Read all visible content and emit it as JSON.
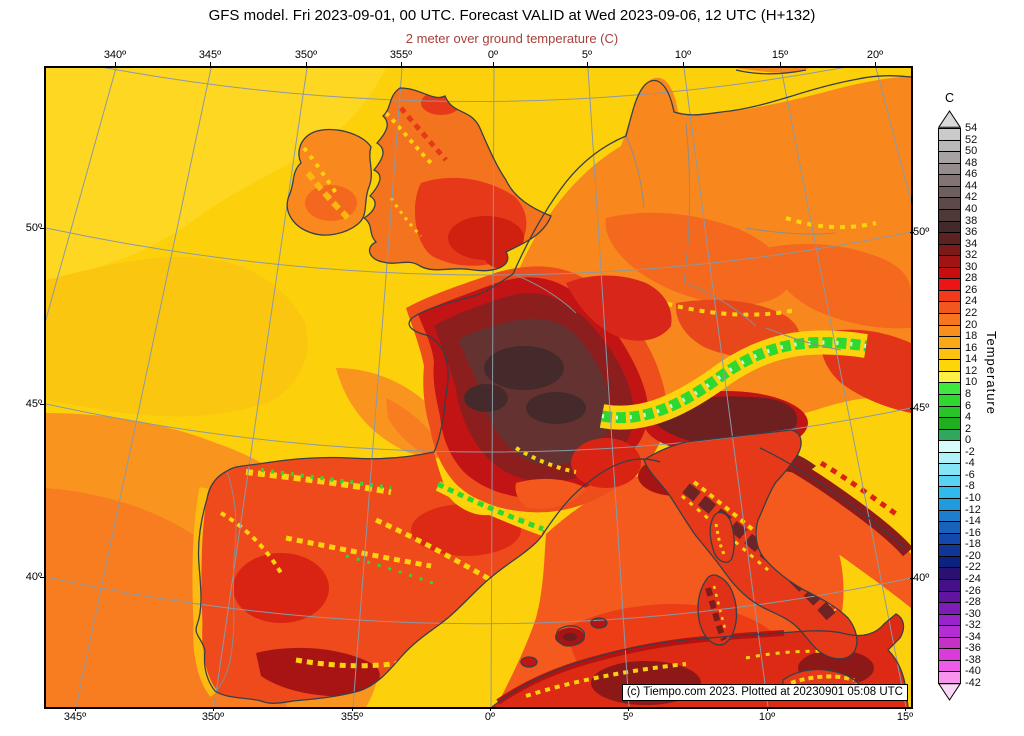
{
  "header": {
    "title": "GFS model. Fri 2023-09-01, 00 UTC. Forecast VALID at Wed 2023-09-06, 12 UTC (H+132)",
    "subtitle": "2 meter over ground temperature (C)",
    "subtitle_color": "#A6403A"
  },
  "map": {
    "axis_labels": {
      "top": [
        "340º",
        "345º",
        "350º",
        "355º",
        "0º",
        "5º",
        "10º",
        "15º",
        "20º"
      ],
      "bottom": [
        "345º",
        "350º",
        "355º",
        "0º",
        "5º",
        "10º",
        "15º"
      ],
      "left": [
        "50º",
        "45º",
        "40º"
      ],
      "right": [
        "50º",
        "45º",
        "40º"
      ]
    },
    "copyright": "(c) Tiempo.com 2023. Plotted at 20230901 05:08 UTC"
  },
  "colorbar": {
    "unit_label": "C",
    "axis_title": "Temperature",
    "max": 54,
    "min": -42,
    "step": 2,
    "ticks": [
      54,
      52,
      50,
      48,
      46,
      44,
      42,
      40,
      38,
      36,
      34,
      32,
      30,
      28,
      26,
      24,
      22,
      20,
      18,
      16,
      14,
      12,
      10,
      8,
      6,
      4,
      2,
      0,
      -2,
      -4,
      -6,
      -8,
      -10,
      -12,
      -14,
      -16,
      -18,
      -20,
      -22,
      -24,
      -26,
      -28,
      -30,
      -32,
      -34,
      -36,
      -38,
      -40,
      -42
    ],
    "cell_colors": [
      "#CACACA",
      "#B9B9B9",
      "#A8A3A3",
      "#968C8C",
      "#837373",
      "#6F5E5E",
      "#5E4949",
      "#4F3838",
      "#432A2A",
      "#5C2222",
      "#7C1A1A",
      "#A11414",
      "#C60E0E",
      "#EC1414",
      "#F23A1A",
      "#F4571D",
      "#F6751E",
      "#F8901E",
      "#FAA816",
      "#FCC30E",
      "#FDD60A",
      "#FCF046",
      "#3FE83F",
      "#2FD82F",
      "#28C428",
      "#20AE20",
      "#2FA75C",
      "#D6FBFB",
      "#B0F2F8",
      "#85E4F6",
      "#57D2F2",
      "#2FBCEC",
      "#209CDC",
      "#1C7ECC",
      "#1862BC",
      "#1448AC",
      "#103698",
      "#0C2280",
      "#2A1070",
      "#451088",
      "#6114A0",
      "#7D1CB8",
      "#9924CC",
      "#B32CD4",
      "#C530C5",
      "#DA3CDA",
      "#EC5CE8",
      "#F894EE"
    ],
    "arrow_top_color": "#D9D9D9",
    "arrow_bottom_color": "#FBD7F7"
  }
}
